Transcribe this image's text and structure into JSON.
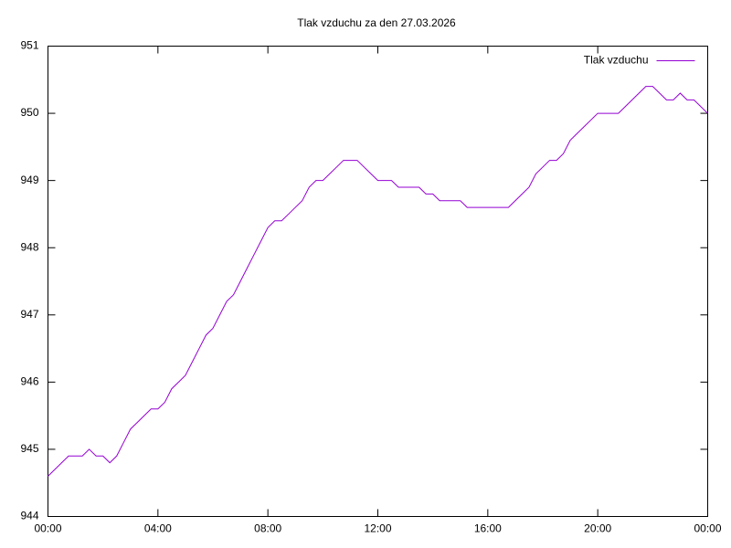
{
  "chart_data": {
    "type": "line",
    "title": "Tlak vzduchu za den 27.03.2026",
    "x": [
      0,
      0.25,
      0.5,
      0.75,
      1,
      1.25,
      1.5,
      1.75,
      2,
      2.25,
      2.5,
      2.75,
      3,
      3.25,
      3.5,
      3.75,
      4,
      4.25,
      4.5,
      4.75,
      5,
      5.25,
      5.5,
      5.75,
      6,
      6.25,
      6.5,
      6.75,
      7,
      7.25,
      7.5,
      7.75,
      8,
      8.25,
      8.5,
      8.75,
      9,
      9.25,
      9.5,
      9.75,
      10,
      10.25,
      10.5,
      10.75,
      11,
      11.25,
      11.5,
      11.75,
      12,
      12.25,
      12.5,
      12.75,
      13,
      13.25,
      13.5,
      13.75,
      14,
      14.25,
      14.5,
      14.75,
      15,
      15.25,
      15.5,
      15.75,
      16,
      16.25,
      16.5,
      16.75,
      17,
      17.25,
      17.5,
      17.75,
      18,
      18.25,
      18.5,
      18.75,
      19,
      19.25,
      19.5,
      19.75,
      20,
      20.25,
      20.5,
      20.75,
      21,
      21.25,
      21.5,
      21.75,
      22,
      22.25,
      22.5,
      22.75,
      23,
      23.25,
      23.5,
      23.75,
      24
    ],
    "series": [
      {
        "name": "Tlak vzduchu",
        "color": "#9400d3",
        "values": [
          944.6,
          944.7,
          944.8,
          944.9,
          944.9,
          944.9,
          945.0,
          944.9,
          944.9,
          944.8,
          944.9,
          945.1,
          945.3,
          945.4,
          945.5,
          945.6,
          945.6,
          945.7,
          945.9,
          946.0,
          946.1,
          946.3,
          946.5,
          946.7,
          946.8,
          947.0,
          947.2,
          947.3,
          947.5,
          947.7,
          947.9,
          948.1,
          948.3,
          948.4,
          948.4,
          948.5,
          948.6,
          948.7,
          948.9,
          949.0,
          949.0,
          949.1,
          949.2,
          949.3,
          949.3,
          949.3,
          949.2,
          949.1,
          949.0,
          949.0,
          949.0,
          948.9,
          948.9,
          948.9,
          948.9,
          948.8,
          948.8,
          948.7,
          948.7,
          948.7,
          948.7,
          948.6,
          948.6,
          948.6,
          948.6,
          948.6,
          948.6,
          948.6,
          948.7,
          948.8,
          948.9,
          949.1,
          949.2,
          949.3,
          949.3,
          949.4,
          949.6,
          949.7,
          949.8,
          949.9,
          950.0,
          950.0,
          950.0,
          950.0,
          950.1,
          950.2,
          950.3,
          950.4,
          950.4,
          950.3,
          950.2,
          950.2,
          950.3,
          950.2,
          950.2,
          950.1,
          950.0
        ]
      }
    ],
    "xlim": [
      0,
      24
    ],
    "xticks": [
      {
        "value": 0,
        "label": "00:00"
      },
      {
        "value": 4,
        "label": "04:00"
      },
      {
        "value": 8,
        "label": "08:00"
      },
      {
        "value": 12,
        "label": "12:00"
      },
      {
        "value": 16,
        "label": "16:00"
      },
      {
        "value": 20,
        "label": "20:00"
      },
      {
        "value": 24,
        "label": "00:00"
      }
    ],
    "ylim": [
      944,
      951
    ],
    "yticks": [
      944,
      945,
      946,
      947,
      948,
      949,
      950,
      951
    ],
    "legend": "top-right",
    "grid": false
  }
}
